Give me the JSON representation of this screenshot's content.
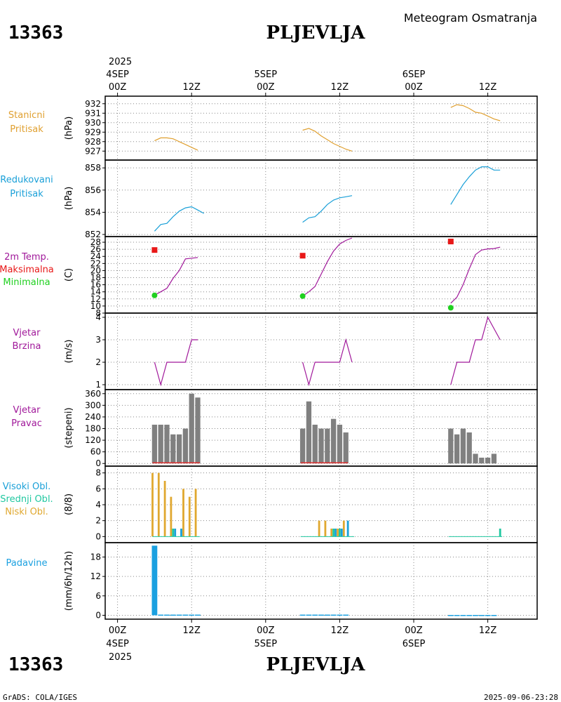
{
  "station_id": "13363",
  "station_name": "PLJEVLJA",
  "title": "Meteogram Osmatranja",
  "footer_left": "GrADS: COLA/IGES",
  "footer_right": "2025-09-06-23:28",
  "colors": {
    "stanicni": "#e0a030",
    "redukovani": "#1aa0d8",
    "temp": "#a0189a",
    "max": "#e81818",
    "min": "#20d020",
    "wind": "#a0189a",
    "dir": "#808080",
    "high_cloud": "#1aa0d8",
    "mid_cloud": "#20c8a0",
    "low_cloud": "#e0a830",
    "precip": "#1aa0e0",
    "dir_base": "#e03030"
  },
  "x_axis": {
    "top_year": "2025",
    "bottom_year": "2025",
    "ticks": [
      {
        "t": 0,
        "top": "00Z",
        "bottom": "00Z",
        "date": "4SEP"
      },
      {
        "t": 12,
        "top": "12Z",
        "bottom": "12Z"
      },
      {
        "t": 24,
        "top": "00Z",
        "bottom": "00Z",
        "date": "5SEP"
      },
      {
        "t": 36,
        "top": "12Z",
        "bottom": "12Z"
      },
      {
        "t": 48,
        "top": "00Z",
        "bottom": "00Z",
        "date": "6SEP"
      },
      {
        "t": 60,
        "top": "12Z",
        "bottom": "12Z"
      }
    ]
  },
  "chart_data": [
    {
      "id": "stanicni",
      "type": "line",
      "label_lines": [
        "Stanicni",
        "Pritisak"
      ],
      "ylabel": "(hPa)",
      "ylim": [
        926.5,
        932.5
      ],
      "yticks": [
        "932",
        "931",
        "930",
        "929",
        "928",
        "927"
      ],
      "series": [
        {
          "name": "Stanicni Pritisak",
          "color_key": "stanicni",
          "segments": [
            [
              [
                6,
                928.1
              ],
              [
                7,
                928.4
              ],
              [
                8,
                928.4
              ],
              [
                9,
                928.3
              ],
              [
                10,
                928.0
              ],
              [
                11,
                927.7
              ],
              [
                12,
                927.4
              ],
              [
                13,
                927.1
              ]
            ],
            [
              [
                30,
                929.2
              ],
              [
                31,
                929.4
              ],
              [
                32,
                929.1
              ],
              [
                33,
                928.6
              ],
              [
                34,
                928.2
              ],
              [
                35,
                927.8
              ],
              [
                36,
                927.5
              ],
              [
                37,
                927.2
              ],
              [
                38,
                927.0
              ]
            ],
            [
              [
                54,
                931.6
              ],
              [
                55,
                931.9
              ],
              [
                56,
                931.8
              ],
              [
                57,
                931.5
              ],
              [
                58,
                931.1
              ],
              [
                59,
                931.0
              ],
              [
                60,
                930.7
              ],
              [
                61,
                930.4
              ],
              [
                62,
                930.2
              ]
            ]
          ]
        }
      ]
    },
    {
      "id": "redukovani",
      "type": "line",
      "label_lines": [
        "Redukovani",
        "Pritisak"
      ],
      "ylabel": "(hPa)",
      "ylim": [
        852,
        858.2
      ],
      "yticks": [
        "858",
        "856",
        "854",
        "852"
      ],
      "series": [
        {
          "name": "Redukovani Pritisak",
          "color_key": "redukovani",
          "segments": [
            [
              [
                6,
                852.3
              ],
              [
                7,
                852.9
              ],
              [
                8,
                853.0
              ],
              [
                9,
                853.6
              ],
              [
                10,
                854.1
              ],
              [
                11,
                854.4
              ],
              [
                12,
                854.5
              ],
              [
                13,
                854.2
              ],
              [
                14,
                853.9
              ]
            ],
            [
              [
                30,
                853.1
              ],
              [
                31,
                853.5
              ],
              [
                32,
                853.6
              ],
              [
                33,
                854.1
              ],
              [
                34,
                854.7
              ],
              [
                35,
                855.1
              ],
              [
                36,
                855.3
              ],
              [
                37,
                855.4
              ],
              [
                38,
                855.5
              ]
            ],
            [
              [
                54,
                854.7
              ],
              [
                55,
                855.6
              ],
              [
                56,
                856.5
              ],
              [
                57,
                857.2
              ],
              [
                58,
                857.8
              ],
              [
                59,
                858.1
              ],
              [
                60,
                858.1
              ],
              [
                61,
                857.8
              ],
              [
                62,
                857.8
              ]
            ]
          ]
        }
      ]
    },
    {
      "id": "temp",
      "type": "line",
      "label_lines": [
        "2m Temp.",
        "Maksimalna",
        "Minimalna"
      ],
      "ylabel": "(C)",
      "ylim": [
        8,
        29
      ],
      "yticks": [
        "28",
        "26",
        "24",
        "22",
        "20",
        "18",
        "16",
        "14",
        "12",
        "10",
        "8"
      ],
      "series": [
        {
          "name": "2m Temp.",
          "color_key": "temp",
          "segments": [
            [
              [
                6,
                13.1
              ],
              [
                7,
                14.0
              ],
              [
                8,
                15.0
              ],
              [
                9,
                17.8
              ],
              [
                10,
                20.0
              ],
              [
                11,
                23.3
              ],
              [
                12,
                23.5
              ],
              [
                13,
                23.7
              ]
            ],
            [
              [
                30,
                12.8
              ],
              [
                31,
                14.0
              ],
              [
                32,
                15.5
              ],
              [
                33,
                19.0
              ],
              [
                34,
                22.5
              ],
              [
                35,
                25.5
              ],
              [
                36,
                27.5
              ],
              [
                37,
                28.5
              ],
              [
                38,
                29.2
              ]
            ],
            [
              [
                54,
                10.8
              ],
              [
                55,
                12.5
              ],
              [
                56,
                16.0
              ],
              [
                57,
                20.5
              ],
              [
                58,
                24.5
              ],
              [
                59,
                25.8
              ],
              [
                60,
                26.1
              ],
              [
                61,
                26.2
              ],
              [
                62,
                26.6
              ]
            ]
          ]
        }
      ],
      "max_markers": [
        {
          "t": 6,
          "v": 25.8
        },
        {
          "t": 30,
          "v": 24.2
        },
        {
          "t": 54,
          "v": 28.2
        }
      ],
      "min_markers": [
        {
          "t": 6,
          "v": 13.0
        },
        {
          "t": 30,
          "v": 12.8
        },
        {
          "t": 54,
          "v": 9.5
        }
      ]
    },
    {
      "id": "wind_speed",
      "type": "line",
      "label_lines": [
        "Vjetar",
        "Brzina"
      ],
      "ylabel": "(m/s)",
      "ylim": [
        1,
        4
      ],
      "yticks": [
        "4",
        "3",
        "2",
        "1"
      ],
      "series": [
        {
          "name": "Vjetar Brzina",
          "color_key": "wind",
          "segments": [
            [
              [
                6,
                2
              ],
              [
                7,
                1
              ],
              [
                8,
                2
              ],
              [
                9,
                2
              ],
              [
                10,
                2
              ],
              [
                11,
                2
              ],
              [
                12,
                3
              ],
              [
                13,
                3
              ]
            ],
            [
              [
                30,
                2
              ],
              [
                31,
                1
              ],
              [
                32,
                2
              ],
              [
                33,
                2
              ],
              [
                34,
                2
              ],
              [
                35,
                2
              ],
              [
                36,
                2
              ],
              [
                37,
                3
              ],
              [
                38,
                2
              ]
            ],
            [
              [
                54,
                1
              ],
              [
                55,
                2
              ],
              [
                56,
                2
              ],
              [
                57,
                2
              ],
              [
                58,
                3
              ],
              [
                59,
                3
              ],
              [
                60,
                4
              ],
              [
                61,
                3.5
              ],
              [
                62,
                3
              ]
            ]
          ]
        }
      ]
    },
    {
      "id": "wind_dir",
      "type": "bar",
      "label_lines": [
        "Vjetar",
        "Pravac"
      ],
      "ylabel": "(stepeni)",
      "ylim": [
        -10,
        370
      ],
      "yticks": [
        "360",
        "300",
        "240",
        "180",
        "120",
        "60",
        "0"
      ],
      "ytick_values": [
        360,
        300,
        240,
        180,
        120,
        60,
        0
      ],
      "bars": [
        {
          "t": 6,
          "v": 200
        },
        {
          "t": 7,
          "v": 200
        },
        {
          "t": 8,
          "v": 200
        },
        {
          "t": 9,
          "v": 150
        },
        {
          "t": 10,
          "v": 150
        },
        {
          "t": 11,
          "v": 180
        },
        {
          "t": 12,
          "v": 360
        },
        {
          "t": 13,
          "v": 340
        },
        {
          "t": 30,
          "v": 180
        },
        {
          "t": 31,
          "v": 320
        },
        {
          "t": 32,
          "v": 200
        },
        {
          "t": 33,
          "v": 180
        },
        {
          "t": 34,
          "v": 180
        },
        {
          "t": 35,
          "v": 230
        },
        {
          "t": 36,
          "v": 200
        },
        {
          "t": 37,
          "v": 160
        },
        {
          "t": 54,
          "v": 180
        },
        {
          "t": 55,
          "v": 150
        },
        {
          "t": 56,
          "v": 180
        },
        {
          "t": 57,
          "v": 160
        },
        {
          "t": 58,
          "v": 50
        },
        {
          "t": 59,
          "v": 30
        },
        {
          "t": 60,
          "v": 30
        },
        {
          "t": 61,
          "v": 50
        }
      ]
    },
    {
      "id": "clouds",
      "type": "bar",
      "label_lines": [
        "Visoki Obl.",
        "Srednji Obl.",
        "Niski Obl."
      ],
      "ylabel": "(8/8)",
      "label_color_keys": [
        "high_cloud",
        "mid_cloud",
        "low_cloud"
      ],
      "ylim": [
        -0.5,
        8.5
      ],
      "yticks": [
        "8",
        "6",
        "4",
        "2",
        "0"
      ],
      "ytick_values": [
        8,
        6,
        4,
        2,
        0
      ],
      "series": [
        {
          "name": "Niski Obl.",
          "color_key": "low_cloud",
          "offset": -0.33,
          "values": [
            {
              "t": 6,
              "v": 8
            },
            {
              "t": 7,
              "v": 8
            },
            {
              "t": 8,
              "v": 7
            },
            {
              "t": 9,
              "v": 5
            },
            {
              "t": 10,
              "v": 0
            },
            {
              "t": 11,
              "v": 6
            },
            {
              "t": 12,
              "v": 5
            },
            {
              "t": 13,
              "v": 6
            },
            {
              "t": 33,
              "v": 2
            },
            {
              "t": 34,
              "v": 2
            },
            {
              "t": 35,
              "v": 1
            },
            {
              "t": 36,
              "v": 1
            },
            {
              "t": 37,
              "v": 2
            }
          ]
        },
        {
          "name": "Srednji Obl.",
          "color_key": "mid_cloud",
          "offset": 0.0,
          "values": [
            {
              "t": 9,
              "v": 1
            },
            {
              "t": 35,
              "v": 1
            },
            {
              "t": 36,
              "v": 1
            },
            {
              "t": 62,
              "v": 1
            }
          ]
        },
        {
          "name": "Visoki Obl.",
          "color_key": "high_cloud",
          "offset": 0.33,
          "values": [
            {
              "t": 9,
              "v": 1
            },
            {
              "t": 10,
              "v": 1
            },
            {
              "t": 35,
              "v": 1
            },
            {
              "t": 36,
              "v": 1
            },
            {
              "t": 37,
              "v": 2
            }
          ]
        }
      ]
    },
    {
      "id": "precip",
      "type": "bar",
      "label_lines": [
        "Padavine"
      ],
      "ylabel": "(mm/6h/12h)",
      "ylim": [
        -1.2,
        22
      ],
      "yticks": [
        "18",
        "12",
        "6",
        "0"
      ],
      "ytick_values": [
        18,
        12,
        6,
        0
      ],
      "bars": [
        {
          "t": 6,
          "v": 21.5
        },
        {
          "t": 7,
          "v": 0.2
        },
        {
          "t": 8,
          "v": 0.2
        },
        {
          "t": 9,
          "v": 0.2
        },
        {
          "t": 10,
          "v": 0.2
        },
        {
          "t": 11,
          "v": 0.2
        },
        {
          "t": 12,
          "v": 0.2
        },
        {
          "t": 13,
          "v": 0.2
        },
        {
          "t": 30,
          "v": 0.2
        },
        {
          "t": 31,
          "v": 0.2
        },
        {
          "t": 32,
          "v": 0.2
        },
        {
          "t": 33,
          "v": 0.2
        },
        {
          "t": 34,
          "v": 0.2
        },
        {
          "t": 35,
          "v": 0.2
        },
        {
          "t": 36,
          "v": 0.2
        },
        {
          "t": 37,
          "v": 0.2
        },
        {
          "t": 54,
          "v": 0.1
        },
        {
          "t": 55,
          "v": 0.1
        },
        {
          "t": 56,
          "v": 0.1
        },
        {
          "t": 57,
          "v": 0.1
        },
        {
          "t": 58,
          "v": 0.1
        },
        {
          "t": 59,
          "v": 0.1
        },
        {
          "t": 60,
          "v": 0.1
        },
        {
          "t": 61,
          "v": 0.1
        }
      ]
    }
  ]
}
